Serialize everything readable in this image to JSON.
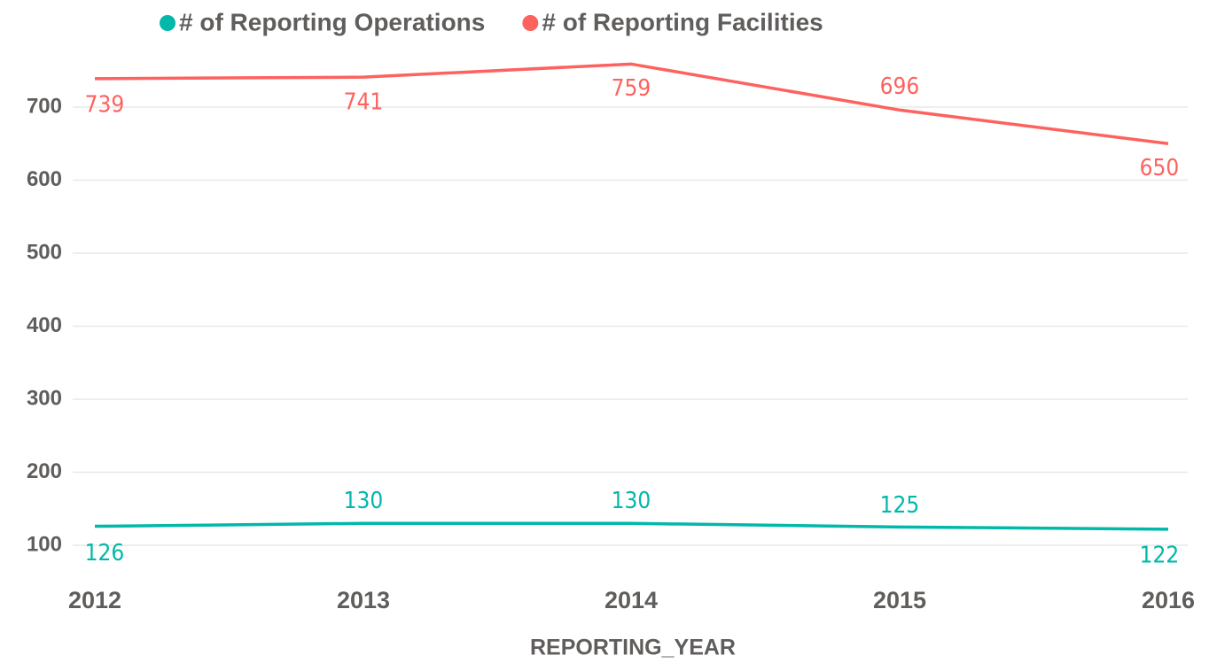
{
  "chart_data": {
    "type": "line",
    "x_label": "REPORTING_YEAR",
    "categories": [
      "2012",
      "2013",
      "2014",
      "2015",
      "2016"
    ],
    "series": [
      {
        "name": "# of Reporting Operations",
        "color": "#01b8aa",
        "values": [
          126,
          130,
          130,
          125,
          122
        ]
      },
      {
        "name": "# of Reporting Facilities",
        "color": "#fd625e",
        "values": [
          739,
          741,
          759,
          696,
          650
        ]
      }
    ],
    "ylim": [
      70,
      775
    ],
    "yticks": [
      100,
      200,
      300,
      400,
      500,
      600,
      700
    ],
    "grid": true,
    "legend": "top"
  }
}
